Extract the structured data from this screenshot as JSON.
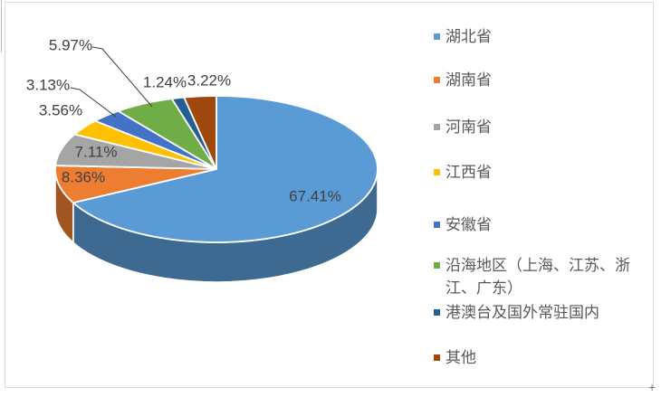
{
  "chart_data": {
    "type": "pie",
    "style": "3d",
    "legend_position": "right",
    "grid": false,
    "start_angle_deg": 0,
    "label_color": "#404040",
    "legend_text_color": "#595959",
    "slices": [
      {
        "label": "湖北省",
        "value": 67.41,
        "display": "67.41%",
        "color": "#5B9BD5"
      },
      {
        "label": "湖南省",
        "value": 8.36,
        "display": "8.36%",
        "color": "#ED7D31"
      },
      {
        "label": "河南省",
        "value": 7.11,
        "display": "7.11%",
        "color": "#A5A5A5"
      },
      {
        "label": "江西省",
        "value": 3.56,
        "display": "3.56%",
        "color": "#FFC000"
      },
      {
        "label": "安徽省",
        "value": 3.13,
        "display": "3.13%",
        "color": "#4472C4"
      },
      {
        "label": "沿海地区（上海、江苏、浙江、广东）",
        "value": 5.97,
        "display": "5.97%",
        "color": "#70AD47"
      },
      {
        "label": "港澳台及国外常驻国内",
        "value": 1.24,
        "display": "1.24%",
        "color": "#255E91"
      },
      {
        "label": "其他",
        "value": 3.22,
        "display": "3.22%",
        "color": "#9E480E"
      }
    ]
  },
  "corner_mark": "+"
}
